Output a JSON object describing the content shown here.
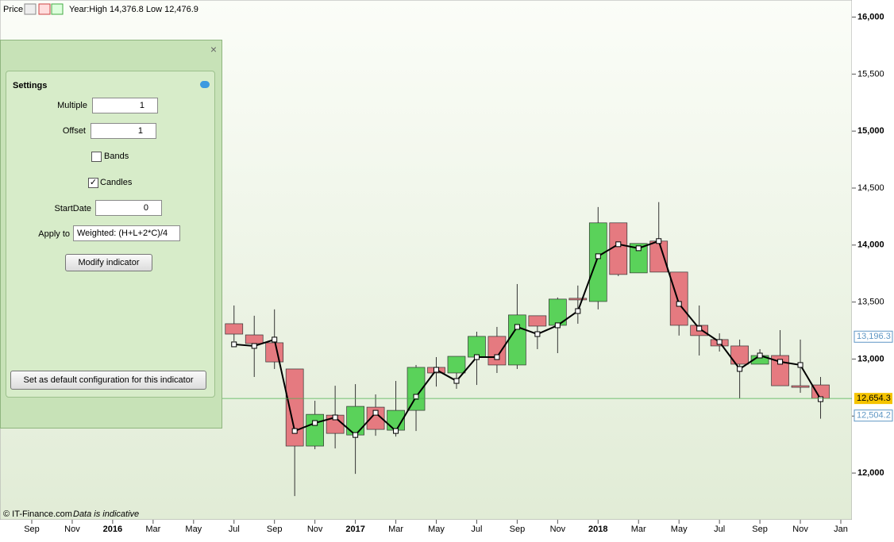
{
  "header": {
    "price": "Price",
    "info": "Year:High 14,376.8 Low 12,476.9"
  },
  "footer": {
    "copyright": "© IT-Finance.com",
    "note": "Data is indicative"
  },
  "settings": {
    "title": "Settings",
    "multiple_label": "Multiple",
    "multiple": "1",
    "offset_label": "Offset",
    "offset": "1",
    "bands_label": "Bands",
    "bands_checked": false,
    "candles_label": "Candles",
    "candles_checked": true,
    "startdate_label": "StartDate",
    "startdate": "0",
    "apply_label": "Apply to",
    "apply": "Weighted: (H+L+2*C)/4",
    "modify_button": "Modify indicator",
    "default_button": "Set as default configuration for this indicator"
  },
  "chart_data": {
    "type": "candlestick",
    "categories": [
      "Sep",
      null,
      "Nov",
      null,
      "2016",
      null,
      "Mar",
      null,
      "May",
      null,
      "Jul",
      null,
      "Sep",
      null,
      "Nov",
      null,
      "2017",
      null,
      "Mar",
      null,
      "May",
      null,
      "Jul",
      null,
      "Sep",
      null,
      "Nov",
      null,
      "2018",
      null,
      "Mar",
      null,
      "May",
      null,
      "Jul",
      null,
      "Sep",
      null,
      "Nov",
      null,
      "Jan"
    ],
    "open": [
      null,
      null,
      null,
      null,
      null,
      null,
      null,
      null,
      null,
      null,
      13310,
      13212,
      13143,
      12913,
      12237,
      12508,
      12334,
      12578,
      12376,
      12550,
      12927,
      12878,
      13017,
      13199,
      12948,
      13380,
      13296,
      13533,
      13505,
      14195,
      13756,
      14035,
      13763,
      13296,
      13171,
      13115,
      12955,
      13031,
      12766,
      12773,
      null
    ],
    "high": [
      null,
      null,
      null,
      null,
      null,
      null,
      null,
      null,
      null,
      null,
      13470,
      13380,
      13436,
      12913,
      12634,
      12766,
      12780,
      12690,
      12808,
      12948,
      13017,
      13024,
      13240,
      13282,
      13658,
      13380,
      13540,
      13645,
      14334,
      14195,
      14014,
      14377,
      13763,
      13470,
      13226,
      13171,
      13087,
      13254,
      13171,
      12843,
      null
    ],
    "low": [
      null,
      null,
      null,
      null,
      null,
      null,
      null,
      null,
      null,
      null,
      13157,
      12843,
      12913,
      11798,
      12209,
      12216,
      11993,
      12327,
      12320,
      12369,
      12759,
      12739,
      12773,
      12878,
      12913,
      13087,
      13052,
      13310,
      13436,
      13728,
      13756,
      13763,
      13206,
      13031,
      13066,
      12655,
      12955,
      12766,
      12704,
      12477,
      null
    ],
    "close": [
      null,
      null,
      null,
      null,
      null,
      null,
      null,
      null,
      null,
      null,
      13219,
      13136,
      12975,
      12237,
      12515,
      12348,
      12585,
      12383,
      12550,
      12927,
      12878,
      13024,
      13199,
      12948,
      13387,
      13289,
      13526,
      13519,
      14195,
      13742,
      14014,
      13763,
      13296,
      13206,
      13115,
      12955,
      13031,
      12766,
      12752,
      12654.3,
      null
    ],
    "weighted": [
      null,
      null,
      null,
      null,
      null,
      null,
      null,
      null,
      null,
      null,
      13129,
      13115,
      13171,
      12369,
      12439,
      12488,
      12334,
      12529,
      12369,
      12669,
      12906,
      12808,
      13017,
      13017,
      13282,
      13219,
      13296,
      13421,
      13902,
      14007,
      13972,
      14035,
      13484,
      13268,
      13150,
      12913,
      13031,
      12976,
      12948,
      12648,
      null
    ],
    "last_price_label": "12,654.3",
    "markers": [
      {
        "value": 13196.3,
        "label": "13,196.3",
        "color": "#5f97c4"
      },
      {
        "value": 12504.2,
        "label": "12,504.2",
        "color": "#5f97c4"
      }
    ],
    "up_color": "#5ad25a",
    "down_color": "#e57a80",
    "line_color": "#000000",
    "ylim": [
      11590,
      16150
    ],
    "yticks": [
      {
        "value": 12000,
        "label": "12,000"
      },
      {
        "value": 12500,
        "label": "12,500"
      },
      {
        "value": 13000,
        "label": "13,000"
      },
      {
        "value": 13500,
        "label": "13,500"
      },
      {
        "value": 14000,
        "label": "14,000"
      },
      {
        "value": 14500,
        "label": "14,500"
      },
      {
        "value": 15000,
        "label": "15,000"
      },
      {
        "value": 15500,
        "label": "15,500"
      },
      {
        "value": 16000,
        "label": "16,000"
      }
    ]
  }
}
